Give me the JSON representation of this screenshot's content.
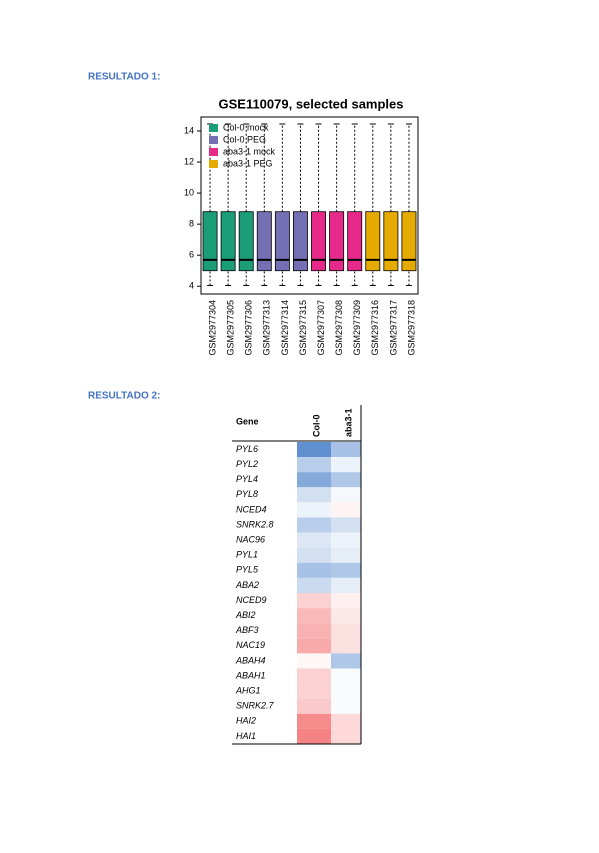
{
  "heading1": "RESULTADO 1:",
  "chart_data": {
    "type": "box",
    "title": "GSE110079, selected samples",
    "categories": [
      "GSM2977304",
      "GSM2977305",
      "GSM2977306",
      "GSM2977313",
      "GSM2977314",
      "GSM2977315",
      "GSM2977307",
      "GSM2977308",
      "GSM2977309",
      "GSM2977316",
      "GSM2977317",
      "GSM2977318"
    ],
    "series": [
      {
        "name": "Col-0 mock",
        "color": "#1b9e77",
        "whisker_low": [
          4.05,
          4.05,
          4.05
        ],
        "q1": [
          5.0,
          5.0,
          5.0
        ],
        "median": [
          5.7,
          5.7,
          5.7
        ],
        "q3": [
          8.8,
          8.8,
          8.8
        ],
        "whisker_high": [
          14.45,
          14.45,
          14.45
        ]
      },
      {
        "name": "Col-0 PEG",
        "color": "#7570b3",
        "whisker_low": [
          4.05,
          4.05,
          4.05
        ],
        "q1": [
          5.0,
          5.0,
          5.0
        ],
        "median": [
          5.7,
          5.7,
          5.7
        ],
        "q3": [
          8.8,
          8.8,
          8.8
        ],
        "whisker_high": [
          14.45,
          14.45,
          14.45
        ]
      },
      {
        "name": "aba3-1 mock",
        "color": "#e7298a",
        "whisker_low": [
          4.05,
          4.05,
          4.05
        ],
        "q1": [
          5.0,
          5.0,
          5.0
        ],
        "median": [
          5.7,
          5.7,
          5.7
        ],
        "q3": [
          8.8,
          8.8,
          8.8
        ],
        "whisker_high": [
          14.45,
          14.45,
          14.45
        ]
      },
      {
        "name": "aba3-1 PEG",
        "color": "#e6ab02",
        "whisker_low": [
          4.05,
          4.05,
          4.05
        ],
        "q1": [
          5.0,
          5.0,
          5.0
        ],
        "median": [
          5.7,
          5.7,
          5.7
        ],
        "q3": [
          8.8,
          8.8,
          8.8
        ],
        "whisker_high": [
          14.45,
          14.45,
          14.45
        ]
      }
    ],
    "ylim": [
      3.5,
      14.9
    ],
    "yticks": [
      4,
      6,
      8,
      10,
      12,
      14
    ],
    "legend": "top-left"
  },
  "heading2": "RESULTADO 2:",
  "heatmap": {
    "row_header": "Gene",
    "columns": [
      "Col-0",
      "aba3-1"
    ],
    "rows": [
      "PYL6",
      "PYL2",
      "PYL4",
      "PYL8",
      "NCED4",
      "SNRK2.8",
      "NAC96",
      "PYL1",
      "PYL5",
      "ABA2",
      "NCED9",
      "ABI2",
      "ABF3",
      "NAC19",
      "ABAH4",
      "ABAH1",
      "AHG1",
      "SNRK2.7",
      "HAI2",
      "HAI1"
    ],
    "values": [
      [
        -0.9,
        -0.5
      ],
      [
        -0.4,
        -0.1
      ],
      [
        -0.7,
        -0.45
      ],
      [
        -0.25,
        -0.05
      ],
      [
        -0.1,
        0.08
      ],
      [
        -0.4,
        -0.25
      ],
      [
        -0.2,
        -0.1
      ],
      [
        -0.25,
        -0.15
      ],
      [
        -0.5,
        -0.45
      ],
      [
        -0.3,
        -0.15
      ],
      [
        0.3,
        0.1
      ],
      [
        0.45,
        0.15
      ],
      [
        0.5,
        0.2
      ],
      [
        0.55,
        0.2
      ],
      [
        0.05,
        -0.45
      ],
      [
        0.3,
        -0.03
      ],
      [
        0.3,
        -0.03
      ],
      [
        0.35,
        -0.03
      ],
      [
        0.75,
        0.25
      ],
      [
        0.8,
        0.25
      ]
    ],
    "vlim": [
      -1,
      1
    ],
    "low_color": "#4f84cc",
    "mid_color": "#ffffff",
    "high_color": "#f26464"
  }
}
